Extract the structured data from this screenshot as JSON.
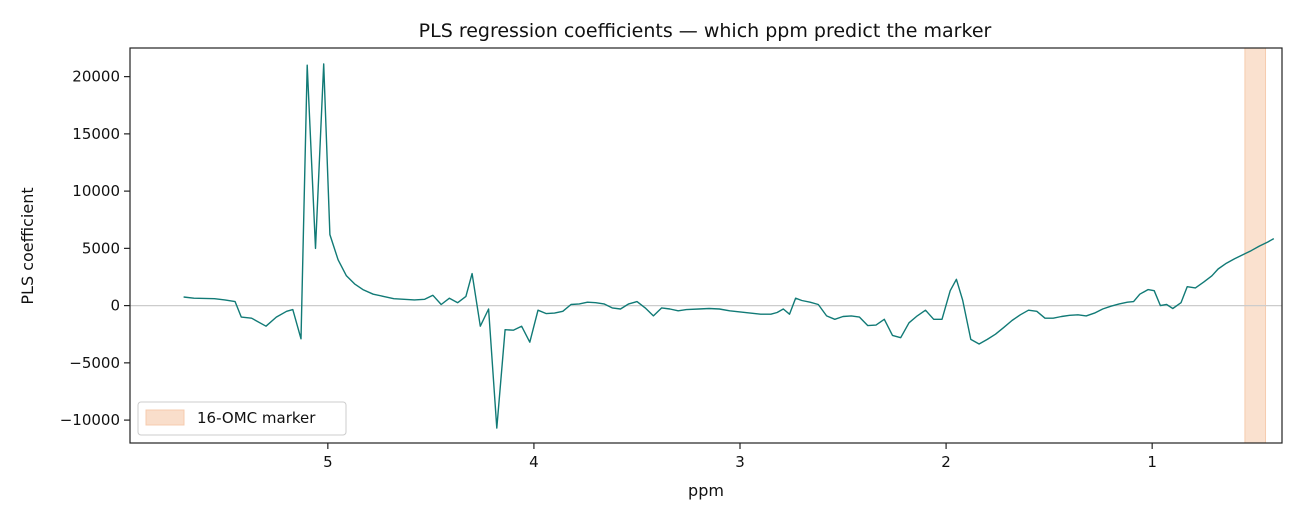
{
  "chart_data": {
    "type": "line",
    "title": "PLS regression coefficients — which ppm predict the marker",
    "xlabel": "ppm",
    "ylabel": "PLS coefficient",
    "x_reversed": true,
    "xlim": [
      5.96,
      0.37
    ],
    "ylim": [
      -12000,
      22500
    ],
    "x_ticks": [
      {
        "value": 5,
        "label": "5"
      },
      {
        "value": 4,
        "label": "4"
      },
      {
        "value": 3,
        "label": "3"
      },
      {
        "value": 2,
        "label": "2"
      },
      {
        "value": 1,
        "label": "1"
      }
    ],
    "y_ticks": [
      {
        "value": -10000,
        "label": "−10000"
      },
      {
        "value": -5000,
        "label": "−5000"
      },
      {
        "value": 0,
        "label": "0"
      },
      {
        "value": 5000,
        "label": "5000"
      },
      {
        "value": 10000,
        "label": "10000"
      },
      {
        "value": 15000,
        "label": "15000"
      },
      {
        "value": 20000,
        "label": "20000"
      }
    ],
    "reference_line": {
      "y": 0,
      "color": "#cccccc"
    },
    "highlight_band": {
      "x_from": 0.55,
      "x_to": 0.45,
      "label": "16-OMC marker",
      "color": "#f5c8a8"
    },
    "legend": {
      "placement": "lower-left",
      "entries": [
        {
          "label": "16-OMC marker",
          "color": "#f5c8a8"
        }
      ]
    },
    "grid": false,
    "series": [
      {
        "color": "#117a76",
        "points": [
          [
            5.7,
            750
          ],
          [
            5.65,
            650
          ],
          [
            5.55,
            600
          ],
          [
            5.5,
            500
          ],
          [
            5.45,
            350
          ],
          [
            5.42,
            -1000
          ],
          [
            5.37,
            -1100
          ],
          [
            5.3,
            -1800
          ],
          [
            5.25,
            -1000
          ],
          [
            5.2,
            -500
          ],
          [
            5.17,
            -350
          ],
          [
            5.13,
            -2900
          ],
          [
            5.1,
            21000
          ],
          [
            5.06,
            5000
          ],
          [
            5.02,
            21100
          ],
          [
            4.99,
            6200
          ],
          [
            4.95,
            4000
          ],
          [
            4.91,
            2600
          ],
          [
            4.87,
            1900
          ],
          [
            4.83,
            1400
          ],
          [
            4.78,
            1000
          ],
          [
            4.73,
            800
          ],
          [
            4.68,
            600
          ],
          [
            4.63,
            550
          ],
          [
            4.58,
            500
          ],
          [
            4.53,
            550
          ],
          [
            4.49,
            900
          ],
          [
            4.45,
            100
          ],
          [
            4.41,
            650
          ],
          [
            4.37,
            250
          ],
          [
            4.33,
            800
          ],
          [
            4.3,
            2800
          ],
          [
            4.26,
            -1800
          ],
          [
            4.22,
            -300
          ],
          [
            4.18,
            -10700
          ],
          [
            4.14,
            -2100
          ],
          [
            4.1,
            -2150
          ],
          [
            4.06,
            -1800
          ],
          [
            4.02,
            -3200
          ],
          [
            3.98,
            -400
          ],
          [
            3.94,
            -700
          ],
          [
            3.9,
            -650
          ],
          [
            3.86,
            -500
          ],
          [
            3.82,
            100
          ],
          [
            3.78,
            150
          ],
          [
            3.74,
            300
          ],
          [
            3.7,
            250
          ],
          [
            3.66,
            150
          ],
          [
            3.62,
            -200
          ],
          [
            3.58,
            -300
          ],
          [
            3.54,
            150
          ],
          [
            3.5,
            350
          ],
          [
            3.46,
            -200
          ],
          [
            3.42,
            -900
          ],
          [
            3.38,
            -200
          ],
          [
            3.34,
            -300
          ],
          [
            3.3,
            -450
          ],
          [
            3.26,
            -350
          ],
          [
            3.2,
            -300
          ],
          [
            3.15,
            -250
          ],
          [
            3.1,
            -300
          ],
          [
            3.05,
            -450
          ],
          [
            3.0,
            -550
          ],
          [
            2.95,
            -650
          ],
          [
            2.9,
            -750
          ],
          [
            2.85,
            -750
          ],
          [
            2.82,
            -600
          ],
          [
            2.79,
            -300
          ],
          [
            2.76,
            -750
          ],
          [
            2.73,
            650
          ],
          [
            2.7,
            450
          ],
          [
            2.66,
            300
          ],
          [
            2.62,
            100
          ],
          [
            2.58,
            -900
          ],
          [
            2.54,
            -1200
          ],
          [
            2.5,
            -950
          ],
          [
            2.46,
            -900
          ],
          [
            2.42,
            -1000
          ],
          [
            2.38,
            -1750
          ],
          [
            2.34,
            -1700
          ],
          [
            2.3,
            -1200
          ],
          [
            2.26,
            -2600
          ],
          [
            2.22,
            -2800
          ],
          [
            2.18,
            -1500
          ],
          [
            2.14,
            -900
          ],
          [
            2.1,
            -400
          ],
          [
            2.06,
            -1200
          ],
          [
            2.02,
            -1200
          ],
          [
            1.98,
            1300
          ],
          [
            1.95,
            2300
          ],
          [
            1.92,
            500
          ],
          [
            1.88,
            -2950
          ],
          [
            1.84,
            -3350
          ],
          [
            1.8,
            -2950
          ],
          [
            1.76,
            -2500
          ],
          [
            1.72,
            -1900
          ],
          [
            1.68,
            -1300
          ],
          [
            1.64,
            -800
          ],
          [
            1.6,
            -400
          ],
          [
            1.56,
            -500
          ],
          [
            1.52,
            -1100
          ],
          [
            1.48,
            -1100
          ],
          [
            1.44,
            -950
          ],
          [
            1.4,
            -850
          ],
          [
            1.36,
            -800
          ],
          [
            1.32,
            -900
          ],
          [
            1.28,
            -650
          ],
          [
            1.24,
            -300
          ],
          [
            1.2,
            -50
          ],
          [
            1.16,
            150
          ],
          [
            1.12,
            300
          ],
          [
            1.09,
            350
          ],
          [
            1.06,
            1000
          ],
          [
            1.02,
            1400
          ],
          [
            0.99,
            1300
          ],
          [
            0.96,
            0
          ],
          [
            0.93,
            100
          ],
          [
            0.9,
            -250
          ],
          [
            0.86,
            250
          ],
          [
            0.83,
            1650
          ],
          [
            0.79,
            1550
          ],
          [
            0.75,
            2050
          ],
          [
            0.71,
            2600
          ],
          [
            0.68,
            3200
          ],
          [
            0.64,
            3700
          ],
          [
            0.6,
            4100
          ],
          [
            0.56,
            4450
          ],
          [
            0.52,
            4800
          ],
          [
            0.48,
            5200
          ],
          [
            0.44,
            5550
          ],
          [
            0.41,
            5850
          ]
        ]
      }
    ]
  }
}
